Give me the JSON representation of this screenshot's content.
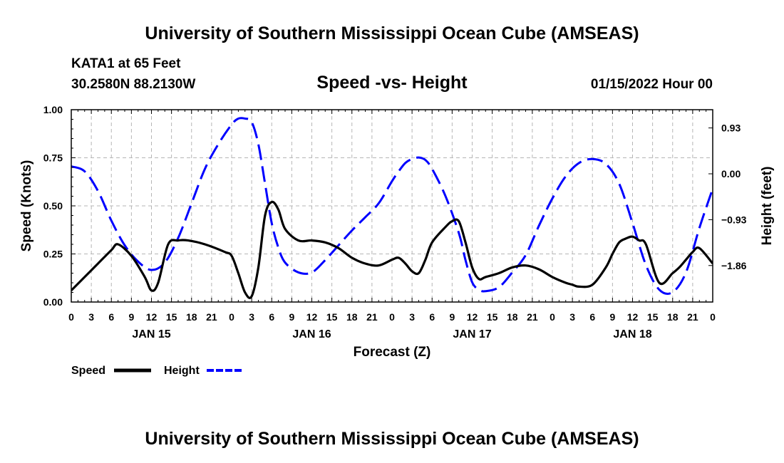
{
  "header": {
    "title": "University of Southern Mississippi Ocean Cube (AMSEAS)",
    "station": "KATA1 at 65 Feet",
    "coords": "30.2580N  88.2130W",
    "subtitle": "Speed -vs- Height",
    "date": "01/15/2022 Hour 00"
  },
  "footer": {
    "title": "University of Southern Mississippi Ocean Cube (AMSEAS)"
  },
  "chart_data": {
    "type": "line",
    "title": "Speed -vs- Height",
    "xlabel": "Forecast (Z)",
    "ylabel": "Speed (Knots)",
    "y2label": "Height (feet)",
    "x_unit": "forecast hour",
    "xlim": [
      0,
      96
    ],
    "ylim": [
      0,
      1.0
    ],
    "y2lim": [
      -2.6,
      1.3
    ],
    "grid": true,
    "x_ticks": [
      {
        "hour": 0,
        "label": "0"
      },
      {
        "hour": 3,
        "label": "3"
      },
      {
        "hour": 6,
        "label": "6"
      },
      {
        "hour": 9,
        "label": "9"
      },
      {
        "hour": 12,
        "label": "12"
      },
      {
        "hour": 15,
        "label": "15"
      },
      {
        "hour": 18,
        "label": "18"
      },
      {
        "hour": 21,
        "label": "21"
      },
      {
        "hour": 24,
        "label": "0"
      },
      {
        "hour": 27,
        "label": "3"
      },
      {
        "hour": 30,
        "label": "6"
      },
      {
        "hour": 33,
        "label": "9"
      },
      {
        "hour": 36,
        "label": "12"
      },
      {
        "hour": 39,
        "label": "15"
      },
      {
        "hour": 42,
        "label": "18"
      },
      {
        "hour": 45,
        "label": "21"
      },
      {
        "hour": 48,
        "label": "0"
      },
      {
        "hour": 51,
        "label": "3"
      },
      {
        "hour": 54,
        "label": "6"
      },
      {
        "hour": 57,
        "label": "9"
      },
      {
        "hour": 60,
        "label": "12"
      },
      {
        "hour": 63,
        "label": "15"
      },
      {
        "hour": 66,
        "label": "18"
      },
      {
        "hour": 69,
        "label": "21"
      },
      {
        "hour": 72,
        "label": "0"
      },
      {
        "hour": 75,
        "label": "3"
      },
      {
        "hour": 78,
        "label": "6"
      },
      {
        "hour": 81,
        "label": "9"
      },
      {
        "hour": 84,
        "label": "12"
      },
      {
        "hour": 87,
        "label": "15"
      },
      {
        "hour": 90,
        "label": "18"
      },
      {
        "hour": 93,
        "label": "21"
      },
      {
        "hour": 96,
        "label": "0"
      }
    ],
    "day_labels": [
      {
        "hour": 12,
        "label": "JAN 15"
      },
      {
        "hour": 36,
        "label": "JAN 16"
      },
      {
        "hour": 60,
        "label": "JAN 17"
      },
      {
        "hour": 84,
        "label": "JAN 18"
      }
    ],
    "y_ticks": [
      {
        "value": 0.0,
        "label": "0.00"
      },
      {
        "value": 0.25,
        "label": "0.25"
      },
      {
        "value": 0.5,
        "label": "0.50"
      },
      {
        "value": 0.75,
        "label": "0.75"
      },
      {
        "value": 1.0,
        "label": "1.00"
      }
    ],
    "y2_ticks": [
      {
        "value": 0.93,
        "label": "0.93"
      },
      {
        "value": 0.0,
        "label": "0.00"
      },
      {
        "value": -0.93,
        "label": "−0.93"
      },
      {
        "value": -1.86,
        "label": "−1.86"
      }
    ],
    "series": [
      {
        "name": "Speed",
        "axis": "left",
        "color": "#000000",
        "dash": "solid",
        "x": [
          0,
          2,
          4,
          6,
          7,
          9,
          11,
          12,
          13,
          14.5,
          16,
          17.5,
          20,
          23,
          24,
          25,
          26,
          27,
          28,
          29,
          30,
          31,
          32,
          34,
          36,
          38,
          40,
          42,
          44,
          46,
          48,
          49,
          50,
          51,
          52,
          53,
          54,
          56,
          57,
          58,
          59,
          60,
          61,
          62,
          64,
          66,
          68,
          70,
          72,
          74,
          75,
          76,
          78,
          80,
          81,
          82,
          83,
          84,
          85,
          86,
          88,
          90,
          91,
          92,
          93,
          94,
          96
        ],
        "values": [
          0.06,
          0.13,
          0.2,
          0.27,
          0.3,
          0.24,
          0.13,
          0.06,
          0.1,
          0.3,
          0.32,
          0.32,
          0.3,
          0.26,
          0.24,
          0.15,
          0.05,
          0.03,
          0.18,
          0.45,
          0.52,
          0.48,
          0.38,
          0.32,
          0.32,
          0.31,
          0.28,
          0.23,
          0.2,
          0.19,
          0.22,
          0.23,
          0.2,
          0.16,
          0.15,
          0.22,
          0.31,
          0.39,
          0.42,
          0.42,
          0.31,
          0.18,
          0.12,
          0.13,
          0.15,
          0.18,
          0.19,
          0.17,
          0.13,
          0.1,
          0.09,
          0.08,
          0.09,
          0.18,
          0.25,
          0.31,
          0.33,
          0.34,
          0.32,
          0.3,
          0.1,
          0.15,
          0.18,
          0.22,
          0.26,
          0.28,
          0.2
        ]
      },
      {
        "name": "Height",
        "axis": "right",
        "color": "#0000ff",
        "dash": "dashed",
        "x": [
          0,
          2,
          4,
          6,
          8,
          10,
          12,
          14,
          16,
          18,
          20,
          22,
          24,
          25,
          26,
          27,
          28,
          29,
          30,
          31,
          32,
          34,
          36,
          38,
          40,
          42,
          44,
          46,
          48,
          49,
          50,
          51,
          52,
          53,
          54,
          56,
          58,
          59,
          60,
          61,
          62,
          64,
          66,
          68,
          70,
          72,
          74,
          76,
          78,
          80,
          82,
          84,
          86,
          88,
          90,
          92,
          94,
          96
        ],
        "values": [
          0.15,
          0.05,
          -0.35,
          -0.95,
          -1.45,
          -1.78,
          -1.95,
          -1.8,
          -1.3,
          -0.6,
          0.1,
          0.6,
          1.0,
          1.12,
          1.12,
          1.05,
          0.6,
          -0.2,
          -1.0,
          -1.5,
          -1.8,
          -2.0,
          -2.0,
          -1.75,
          -1.45,
          -1.15,
          -0.88,
          -0.6,
          -0.15,
          0.05,
          0.22,
          0.3,
          0.33,
          0.28,
          0.1,
          -0.45,
          -1.2,
          -1.75,
          -2.2,
          -2.35,
          -2.38,
          -2.3,
          -2.0,
          -1.65,
          -1.05,
          -0.5,
          -0.05,
          0.22,
          0.3,
          0.2,
          -0.2,
          -1.0,
          -1.85,
          -2.35,
          -2.4,
          -2.0,
          -1.1,
          -0.3
        ]
      }
    ],
    "legend": {
      "placement": "bottom-left",
      "entries": [
        {
          "label": "Speed",
          "color": "#000000",
          "dash": "solid"
        },
        {
          "label": "Height",
          "color": "#0000ff",
          "dash": "dashed"
        }
      ]
    }
  }
}
